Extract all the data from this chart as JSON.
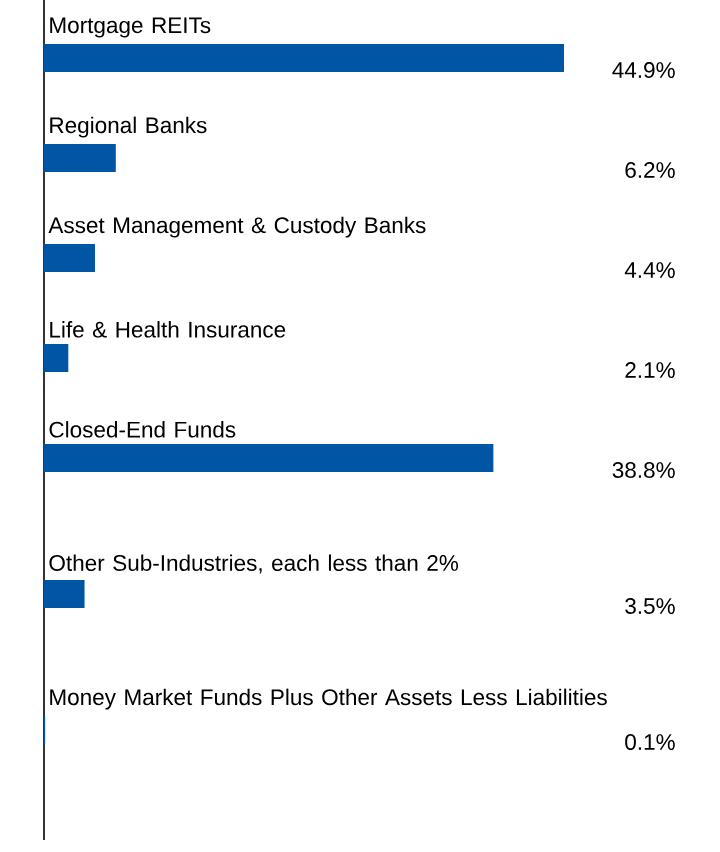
{
  "chart_data": {
    "type": "bar",
    "orientation": "horizontal",
    "categories": [
      "Mortgage REITs",
      "Regional Banks",
      "Asset Management & Custody Banks",
      "Life & Health Insurance",
      "Closed-End Funds",
      "Other Sub-Industries, each less than 2%",
      "Money Market Funds Plus Other Assets Less Liabilities"
    ],
    "values": [
      44.9,
      6.2,
      4.4,
      2.1,
      38.8,
      3.5,
      0.1
    ],
    "value_labels": [
      "44.9%",
      "6.2%",
      "4.4%",
      "2.1%",
      "38.8%",
      "3.5%",
      "0.1%"
    ],
    "color": "#0055a4"
  }
}
